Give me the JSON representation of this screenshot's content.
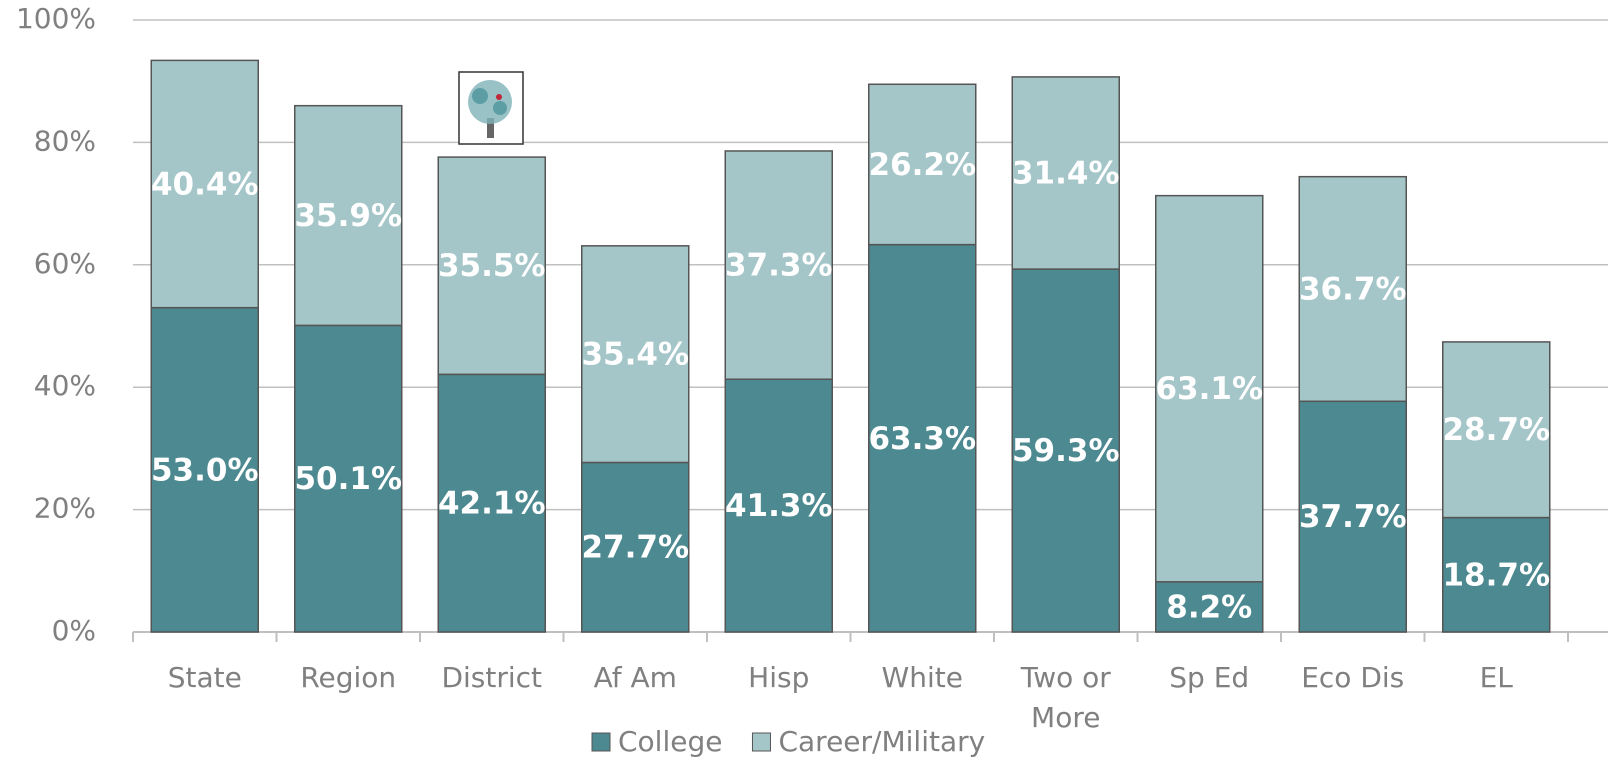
{
  "chart_data": {
    "type": "stacked_bar",
    "categories": [
      "State",
      "Region",
      "District",
      "Af Am",
      "Hisp",
      "White",
      "Two or More",
      "Sp Ed",
      "Eco Dis",
      "EL"
    ],
    "series": [
      {
        "name": "College",
        "color": "#4d8990",
        "values": [
          53.0,
          50.1,
          42.1,
          27.7,
          41.3,
          63.3,
          59.3,
          8.2,
          37.7,
          18.7
        ],
        "value_labels": [
          "53.0%",
          "50.1%",
          "42.1%",
          "27.7%",
          "41.3%",
          "63.3%",
          "59.3%",
          "8.2%",
          "37.7%",
          "18.7%"
        ]
      },
      {
        "name": "Career/Military",
        "color": "#a5c6c9",
        "values": [
          40.4,
          35.9,
          35.5,
          35.4,
          37.3,
          26.2,
          31.4,
          63.1,
          36.7,
          28.7
        ],
        "value_labels": [
          "40.4%",
          "35.9%",
          "35.5%",
          "35.4%",
          "37.3%",
          "26.2%",
          "31.4%",
          "63.1%",
          "36.7%",
          "28.7%"
        ]
      }
    ],
    "ylim": [
      0,
      100
    ],
    "yticks": [
      {
        "value": 0,
        "label": "0%"
      },
      {
        "value": 20,
        "label": "20%"
      },
      {
        "value": 40,
        "label": "40%"
      },
      {
        "value": 60,
        "label": "60%"
      },
      {
        "value": 80,
        "label": "80%"
      },
      {
        "value": 100,
        "label": "100%"
      }
    ],
    "grid": true,
    "legend": "bottom"
  }
}
